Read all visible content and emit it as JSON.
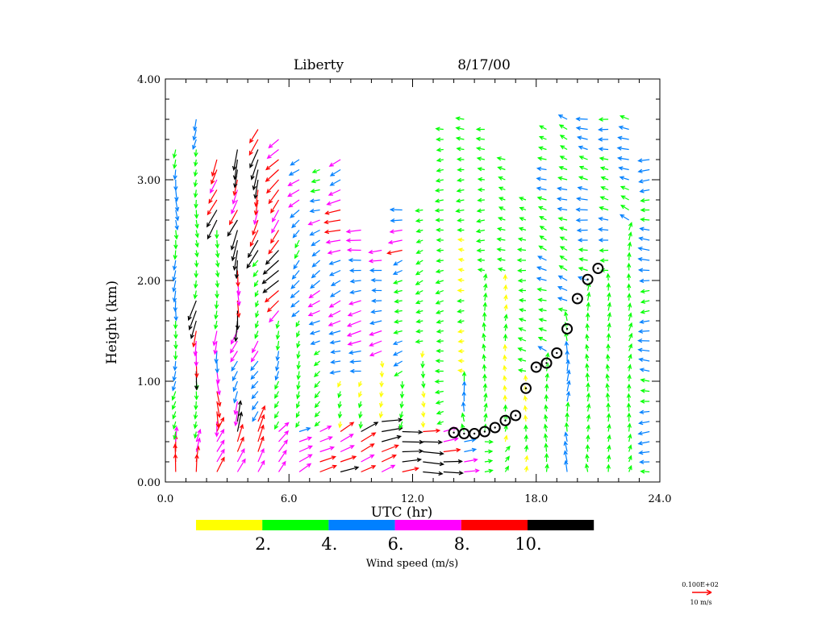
{
  "chart_data": {
    "type": "wind-profile-vector",
    "title_site": "Liberty",
    "title_date": "8/17/00",
    "xlabel": "UTC (hr)",
    "ylabel": "Height (km)",
    "xlim": [
      0,
      24
    ],
    "ylim": [
      0,
      4
    ],
    "xticks": [
      "0.0",
      "6.0",
      "12.0",
      "18.0",
      "24.0"
    ],
    "xtick_values": [
      0,
      6,
      12,
      18,
      24
    ],
    "yticks": [
      "0.00",
      "1.00",
      "2.00",
      "3.00",
      "4.00"
    ],
    "ytick_values": [
      0,
      1,
      2,
      3,
      4
    ],
    "colorbar": {
      "label": "Wind speed (m/s)",
      "bins": [
        [
          0,
          2,
          "#ffff00"
        ],
        [
          2,
          4,
          "#00ff00"
        ],
        [
          4,
          6,
          "#0080ff"
        ],
        [
          6,
          8,
          "#ff00ff"
        ],
        [
          8,
          10,
          "#ff0000"
        ],
        [
          10,
          99,
          "#000000"
        ]
      ],
      "tick_labels": [
        "2.",
        "4.",
        "6.",
        "8.",
        "10."
      ]
    },
    "reference_vector": {
      "value_label": "0.100E+02",
      "unit_label": "10 m/s",
      "color": "#ff0000"
    },
    "wind_columns_note": "layers: [top_km, speed_m/s, direction_toward_deg_ccw_from_east], gate spacing 0.1 km from 0.1 km",
    "wind_columns": [
      {
        "t": 0.5,
        "layers": [
          [
            0.45,
            9,
            80
          ],
          [
            1.6,
            4,
            260
          ],
          [
            3.3,
            5,
            270
          ]
        ]
      },
      {
        "t": 1.5,
        "layers": [
          [
            0.45,
            9,
            80
          ],
          [
            1.0,
            3,
            270
          ],
          [
            1.8,
            11,
            260
          ],
          [
            3.3,
            3,
            270
          ],
          [
            3.6,
            5,
            250
          ]
        ]
      },
      {
        "t": 2.5,
        "layers": [
          [
            0.5,
            10,
            70
          ],
          [
            1.5,
            8,
            270
          ],
          [
            2.5,
            3,
            270
          ],
          [
            3.2,
            11,
            250
          ]
        ]
      },
      {
        "t": 3.5,
        "layers": [
          [
            0.6,
            11,
            70
          ],
          [
            1.5,
            7,
            250
          ],
          [
            2.5,
            11,
            265
          ],
          [
            3.3,
            11,
            250
          ]
        ]
      },
      {
        "t": 4.5,
        "layers": [
          [
            0.6,
            9,
            60
          ],
          [
            1.4,
            6,
            240
          ],
          [
            2.2,
            3,
            240
          ],
          [
            3.5,
            11,
            250
          ]
        ]
      },
      {
        "t": 5.5,
        "layers": [
          [
            0.5,
            7,
            45
          ],
          [
            1.6,
            4,
            250
          ],
          [
            2.6,
            11,
            230
          ],
          [
            3.4,
            9,
            230
          ]
        ]
      },
      {
        "t": 6.5,
        "layers": [
          [
            0.5,
            7,
            30
          ],
          [
            1.6,
            3,
            250
          ],
          [
            2.4,
            5,
            230
          ],
          [
            3.2,
            6,
            220
          ]
        ]
      },
      {
        "t": 7.5,
        "layers": [
          [
            0.5,
            9,
            30
          ],
          [
            1.3,
            3,
            220
          ],
          [
            2.6,
            6,
            210
          ],
          [
            3.1,
            4,
            200
          ]
        ]
      },
      {
        "t": 8.5,
        "layers": [
          [
            0.5,
            11,
            25
          ],
          [
            1.0,
            2,
            250
          ],
          [
            2.0,
            6,
            200
          ],
          [
            3.2,
            8,
            200
          ]
        ]
      },
      {
        "t": 9.5,
        "layers": [
          [
            0.5,
            11,
            20
          ],
          [
            1.0,
            2,
            260
          ],
          [
            2.5,
            7,
            190
          ]
        ]
      },
      {
        "t": 10.5,
        "layers": [
          [
            0.6,
            11,
            15
          ],
          [
            1.2,
            2,
            270
          ],
          [
            2.3,
            6,
            190
          ]
        ]
      },
      {
        "t": 11.5,
        "layers": [
          [
            0.55,
            11,
            10
          ],
          [
            1.0,
            3,
            260
          ],
          [
            2.2,
            4,
            200
          ],
          [
            2.7,
            8,
            180
          ]
        ]
      },
      {
        "t": 12.5,
        "layers": [
          [
            0.55,
            11,
            5
          ],
          [
            1.3,
            2,
            270
          ],
          [
            2.7,
            3,
            200
          ]
        ]
      },
      {
        "t": 13.5,
        "layers": [
          [
            0.55,
            10,
            5
          ],
          [
            2.8,
            3,
            190
          ],
          [
            3.5,
            3,
            180
          ]
        ]
      },
      {
        "t": 14.5,
        "layers": [
          [
            0.45,
            8,
            0
          ],
          [
            1.0,
            4,
            100
          ],
          [
            2.6,
            2,
            180
          ],
          [
            3.6,
            3,
            180
          ]
        ]
      },
      {
        "t": 15.5,
        "layers": [
          [
            0.45,
            4,
            0
          ],
          [
            2.0,
            3,
            90
          ],
          [
            3.5,
            3,
            180
          ]
        ]
      },
      {
        "t": 16.5,
        "layers": [
          [
            0.3,
            3,
            60
          ],
          [
            2.0,
            2,
            90
          ],
          [
            2.7,
            3,
            160
          ],
          [
            3.2,
            3,
            170
          ]
        ]
      },
      {
        "t": 17.5,
        "layers": [
          [
            1.0,
            2,
            90
          ],
          [
            2.8,
            3,
            170
          ]
        ]
      },
      {
        "t": 18.5,
        "layers": [
          [
            1.2,
            3,
            90
          ],
          [
            3.5,
            4,
            160
          ]
        ]
      },
      {
        "t": 19.5,
        "layers": [
          [
            1.6,
            5,
            90
          ],
          [
            3.6,
            4,
            160
          ]
        ]
      },
      {
        "t": 20.5,
        "layers": [
          [
            1.9,
            3,
            90
          ],
          [
            3.6,
            5,
            170
          ]
        ]
      },
      {
        "t": 21.5,
        "layers": [
          [
            2.0,
            3,
            90
          ],
          [
            3.6,
            4,
            170
          ]
        ]
      },
      {
        "t": 22.5,
        "layers": [
          [
            2.5,
            3,
            80
          ],
          [
            3.6,
            5,
            160
          ]
        ]
      },
      {
        "t": 23.5,
        "layers": [
          [
            3.2,
            5,
            180
          ]
        ]
      }
    ],
    "boundary_layer_height": {
      "t": [
        14.0,
        14.5,
        15.0,
        15.5,
        16.0,
        16.5,
        17.0,
        17.5,
        18.0,
        18.5,
        19.0,
        19.5,
        20.0,
        20.5,
        21.0
      ],
      "z": [
        0.49,
        0.48,
        0.48,
        0.5,
        0.54,
        0.61,
        0.66,
        0.93,
        1.14,
        1.18,
        1.28,
        1.52,
        1.82,
        2.01,
        2.12
      ]
    }
  }
}
